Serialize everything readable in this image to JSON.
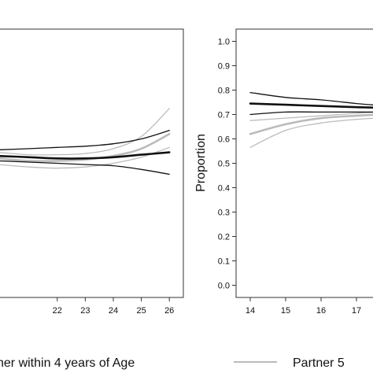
{
  "chart_data": [
    {
      "type": "line",
      "xlabel": "",
      "ylabel": "",
      "xlim": [
        19.9,
        26.5
      ],
      "ylim": [
        -0.05,
        1.05
      ],
      "x_ticks": [
        22,
        23,
        24,
        25,
        26
      ],
      "series": [
        {
          "color": "#111111",
          "width": 2.6,
          "x": [
            19.9,
            21,
            22,
            23,
            24,
            25,
            26
          ],
          "values": [
            0.53,
            0.525,
            0.52,
            0.52,
            0.525,
            0.535,
            0.545
          ]
        },
        {
          "color": "#111111",
          "width": 1.3,
          "x": [
            19.9,
            21,
            22,
            23,
            24,
            25,
            26
          ],
          "values": [
            0.555,
            0.56,
            0.565,
            0.57,
            0.58,
            0.6,
            0.635
          ]
        },
        {
          "color": "#111111",
          "width": 1.3,
          "x": [
            19.9,
            21,
            22,
            23,
            24,
            25,
            26
          ],
          "values": [
            0.51,
            0.505,
            0.5,
            0.495,
            0.49,
            0.475,
            0.455
          ]
        },
        {
          "color": "#bbbbbb",
          "width": 2.6,
          "x": [
            19.9,
            21,
            22,
            23,
            24,
            25,
            26
          ],
          "values": [
            0.52,
            0.51,
            0.51,
            0.515,
            0.53,
            0.56,
            0.62
          ]
        },
        {
          "color": "#bbbbbb",
          "width": 1.3,
          "x": [
            19.9,
            21,
            22,
            23,
            24,
            25,
            26
          ],
          "values": [
            0.545,
            0.535,
            0.535,
            0.54,
            0.56,
            0.61,
            0.725
          ]
        },
        {
          "color": "#bbbbbb",
          "width": 1.3,
          "x": [
            19.9,
            21,
            22,
            23,
            24,
            25,
            26
          ],
          "values": [
            0.495,
            0.485,
            0.48,
            0.485,
            0.5,
            0.525,
            0.565
          ]
        }
      ]
    },
    {
      "type": "line",
      "xlabel": "",
      "ylabel": "Proportion",
      "xlim": [
        13.6,
        17.6
      ],
      "ylim": [
        -0.05,
        1.05
      ],
      "y_ticks": [
        "0.0",
        "0.1",
        "0.2",
        "0.3",
        "0.4",
        "0.5",
        "0.6",
        "0.7",
        "0.8",
        "0.9",
        "1.0"
      ],
      "x_ticks": [
        14,
        15,
        16,
        17
      ],
      "series": [
        {
          "color": "#111111",
          "width": 2.6,
          "x": [
            14,
            15,
            16,
            17,
            17.6
          ],
          "values": [
            0.745,
            0.74,
            0.735,
            0.73,
            0.728
          ]
        },
        {
          "color": "#111111",
          "width": 1.3,
          "x": [
            14,
            15,
            16,
            17,
            17.6
          ],
          "values": [
            0.79,
            0.77,
            0.76,
            0.745,
            0.738
          ]
        },
        {
          "color": "#111111",
          "width": 1.3,
          "x": [
            14,
            15,
            16,
            17,
            17.6
          ],
          "values": [
            0.7,
            0.71,
            0.71,
            0.71,
            0.71
          ]
        },
        {
          "color": "#bbbbbb",
          "width": 2.6,
          "x": [
            14,
            15,
            16,
            17,
            17.6
          ],
          "values": [
            0.62,
            0.66,
            0.685,
            0.695,
            0.7
          ]
        },
        {
          "color": "#bbbbbb",
          "width": 1.3,
          "x": [
            14,
            15,
            16,
            17,
            17.6
          ],
          "values": [
            0.675,
            0.685,
            0.695,
            0.705,
            0.71
          ]
        },
        {
          "color": "#bbbbbb",
          "width": 1.3,
          "x": [
            14,
            15,
            16,
            17,
            17.6
          ],
          "values": [
            0.565,
            0.635,
            0.665,
            0.68,
            0.685
          ]
        }
      ]
    }
  ],
  "legend": {
    "entries": [
      {
        "label": "her within 4 years of Age",
        "color": "#111111"
      },
      {
        "label": "Partner 5",
        "color": "#bbbbbb"
      }
    ]
  }
}
